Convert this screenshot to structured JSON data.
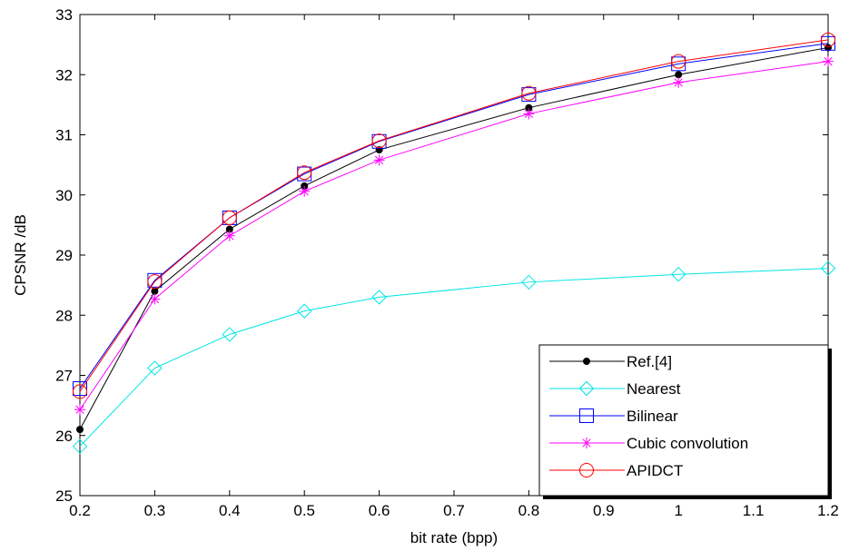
{
  "chart_data": {
    "type": "line",
    "xlabel": "bit rate (bpp)",
    "ylabel": "CPSNR /dB",
    "xlim": [
      0.2,
      1.2
    ],
    "ylim": [
      25,
      33
    ],
    "xticks": [
      0.2,
      0.3,
      0.4,
      0.5,
      0.6,
      0.7,
      0.8,
      0.9,
      1,
      1.1,
      1.2
    ],
    "xtick_labels": [
      "0.2",
      "0.3",
      "0.4",
      "0.5",
      "0.6",
      "0.7",
      "0.8",
      "0.9",
      "1",
      "1.1",
      "1.2"
    ],
    "yticks": [
      25,
      26,
      27,
      28,
      29,
      30,
      31,
      32,
      33
    ],
    "ytick_labels": [
      "25",
      "26",
      "27",
      "28",
      "29",
      "30",
      "31",
      "32",
      "33"
    ],
    "grid": false,
    "legend_position": "bottom-right",
    "x": [
      0.2,
      0.3,
      0.4,
      0.5,
      0.6,
      0.8,
      1.0,
      1.2
    ],
    "series": [
      {
        "name": "Ref.[4]",
        "color": "#000000",
        "marker": "filled-circle",
        "values": [
          26.1,
          28.4,
          29.43,
          30.15,
          30.75,
          31.45,
          32.0,
          32.45
        ]
      },
      {
        "name": "Nearest",
        "color": "#00e5e5",
        "marker": "diamond",
        "values": [
          25.82,
          27.12,
          27.68,
          28.07,
          28.3,
          28.55,
          28.68,
          28.78
        ]
      },
      {
        "name": "Bilinear",
        "color": "#0000ff",
        "marker": "square",
        "values": [
          26.78,
          28.58,
          29.62,
          30.35,
          30.89,
          31.67,
          32.18,
          32.52
        ]
      },
      {
        "name": "Cubic convolution",
        "color": "#ff00ff",
        "marker": "star",
        "values": [
          26.43,
          28.27,
          29.32,
          30.06,
          30.58,
          31.35,
          31.87,
          32.22
        ]
      },
      {
        "name": "APIDCT",
        "color": "#ff0000",
        "marker": "circle",
        "values": [
          26.73,
          28.56,
          29.62,
          30.37,
          30.9,
          31.69,
          32.22,
          32.58
        ]
      }
    ]
  }
}
